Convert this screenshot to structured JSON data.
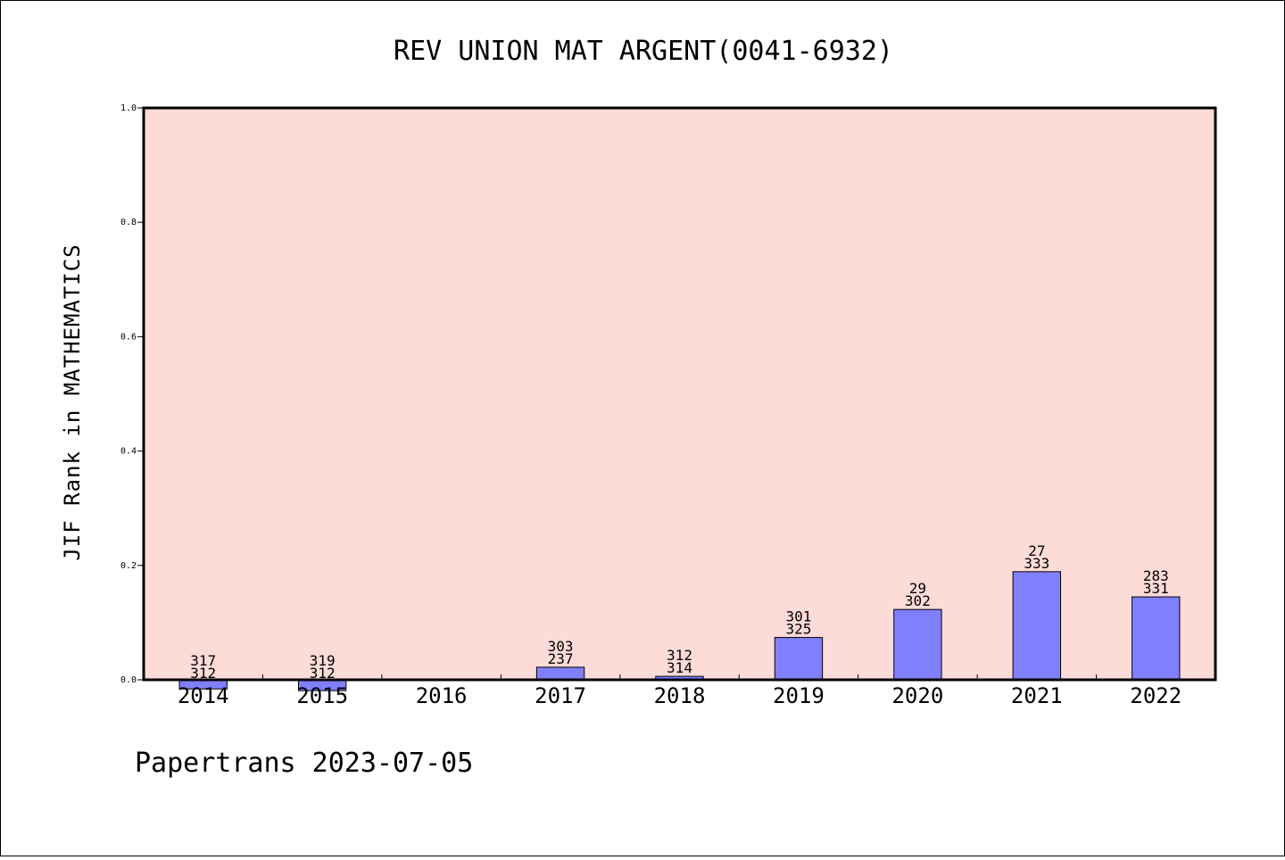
{
  "chart_data": {
    "type": "bar",
    "title": "REV UNION MAT ARGENT(0041-6932)",
    "xlabel": "",
    "ylabel": "JIF Rank in MATHEMATICS",
    "ylim": [
      0,
      1.0
    ],
    "yticks": [
      "0.0",
      "0.2",
      "0.4",
      "0.6",
      "0.8",
      "1.0"
    ],
    "categories": [
      "2014",
      "2015",
      "2016",
      "2017",
      "2018",
      "2019",
      "2020",
      "2021",
      "2022"
    ],
    "values": [
      -0.016,
      -0.019,
      null,
      0.022,
      0.006,
      0.074,
      0.123,
      0.189,
      0.145
    ],
    "bar_labels": [
      [
        "317",
        "312"
      ],
      [
        "319",
        "312"
      ],
      [],
      [
        "303",
        "237"
      ],
      [
        "312",
        "314"
      ],
      [
        "301",
        "325"
      ],
      [
        "29",
        "302"
      ],
      [
        "27",
        "333"
      ],
      [
        "283",
        "331"
      ]
    ],
    "grid": false,
    "colors": {
      "plot_background": "#fddbd7",
      "bar_fill": "#8080ff",
      "bar_stroke": "#000000"
    }
  },
  "footer": "Papertrans 2023-07-05"
}
